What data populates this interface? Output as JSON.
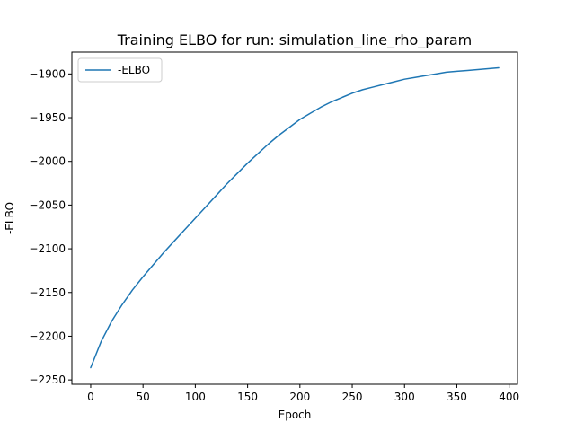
{
  "chart_data": {
    "type": "line",
    "title": "Training ELBO for run: simulation_line_rho_param",
    "xlabel": "Epoch",
    "ylabel": "-ELBO",
    "xlim": [
      -18,
      408
    ],
    "ylim": [
      -2255,
      -1875
    ],
    "xticks": [
      0,
      50,
      100,
      150,
      200,
      250,
      300,
      350,
      400
    ],
    "yticks": [
      -2250,
      -2200,
      -2150,
      -2100,
      -2050,
      -2000,
      -1950,
      -1900
    ],
    "xtick_labels": [
      "0",
      "50",
      "100",
      "150",
      "200",
      "250",
      "300",
      "350",
      "400"
    ],
    "ytick_labels": [
      "−2250",
      "−2200",
      "−2150",
      "−2100",
      "−2050",
      "−2000",
      "−1950",
      "−1900"
    ],
    "grid": false,
    "legend_position": "upper-left",
    "series": [
      {
        "name": "-ELBO",
        "color": "#1f77b4",
        "x": [
          0,
          10,
          20,
          30,
          40,
          50,
          60,
          70,
          80,
          90,
          100,
          110,
          120,
          130,
          140,
          150,
          160,
          170,
          180,
          190,
          200,
          210,
          220,
          230,
          240,
          250,
          260,
          270,
          280,
          290,
          300,
          310,
          320,
          330,
          340,
          350,
          360,
          370,
          380,
          390
        ],
        "values": [
          -2236,
          -2206,
          -2183,
          -2164,
          -2147,
          -2132,
          -2118,
          -2104,
          -2091,
          -2078,
          -2065,
          -2052,
          -2039,
          -2026,
          -2014,
          -2002,
          -1991,
          -1980,
          -1970,
          -1961,
          -1952,
          -1945,
          -1938,
          -1932,
          -1927,
          -1922,
          -1918,
          -1915,
          -1912,
          -1909,
          -1906,
          -1904,
          -1902,
          -1900,
          -1898,
          -1897,
          -1896,
          -1895,
          -1894,
          -1893
        ]
      }
    ]
  }
}
